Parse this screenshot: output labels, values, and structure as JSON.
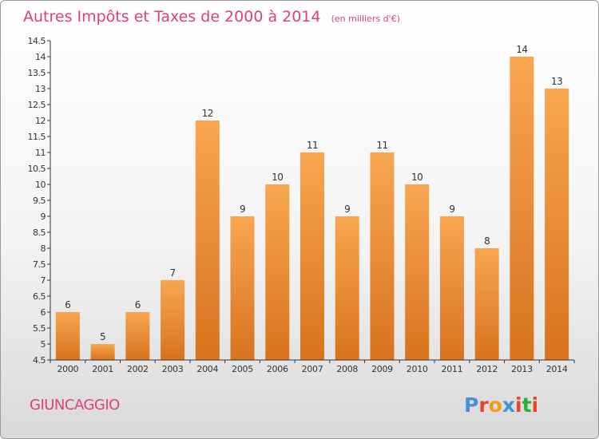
{
  "chart_data": {
    "type": "bar",
    "title": "Autres Impôts et Taxes de 2000 à 2014",
    "subtitle": "(en milliers d'€)",
    "categories": [
      "2000",
      "2001",
      "2002",
      "2003",
      "2004",
      "2005",
      "2006",
      "2007",
      "2008",
      "2009",
      "2010",
      "2011",
      "2012",
      "2013",
      "2014"
    ],
    "values": [
      6,
      5,
      6,
      7,
      12,
      9,
      10,
      11,
      9,
      11,
      10,
      9,
      8,
      14,
      13
    ],
    "value_labels": [
      "6",
      "5",
      "6",
      "7",
      "12",
      "9",
      "10",
      "11",
      "9",
      "11",
      "10",
      "9",
      "8",
      "14",
      "13"
    ],
    "ylim": [
      4.5,
      14.5
    ],
    "yticks": [
      4.5,
      5,
      5.5,
      6,
      6.5,
      7,
      7.5,
      8,
      8.5,
      9,
      9.5,
      10,
      10.5,
      11,
      11.5,
      12,
      12.5,
      13,
      13.5,
      14,
      14.5
    ],
    "ytick_labels": [
      "4.5",
      "5",
      "5.5",
      "6",
      "6.5",
      "7",
      "7.5",
      "8",
      "8.5",
      "9",
      "9.5",
      "10",
      "10.5",
      "11",
      "11.5",
      "12",
      "12.5",
      "13",
      "13.5",
      "14",
      "14.5"
    ],
    "xlabel": "",
    "ylabel": "",
    "grid": false,
    "bar_color_top": "#f8a650",
    "bar_color_bottom": "#d8731f"
  },
  "footer": {
    "place_name": "GIUNCAGGIO",
    "logo_text": "Proxiti"
  },
  "colors": {
    "title": "#e0407a",
    "logo_letters": [
      "#4a8fd6",
      "#e8432b",
      "#f39c12",
      "#4a8fd6",
      "#e8432b",
      "#2fae3a",
      "#e8432b"
    ]
  }
}
